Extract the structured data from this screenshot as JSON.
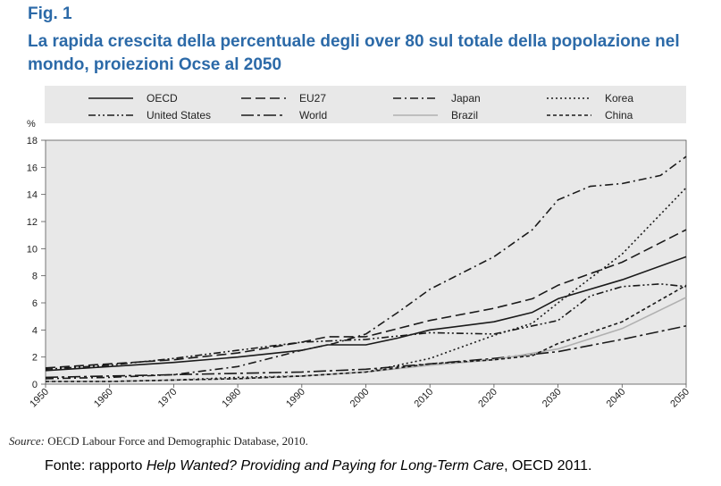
{
  "figure": {
    "label": "Fig. 1",
    "title": "La rapida crescita della percentuale degli over 80 sul totale della popolazione nel mondo, proiezioni Ocse al 2050"
  },
  "source": {
    "prefix": "Source:",
    "text": "OECD Labour Force and Demographic Database, 2010."
  },
  "fonte": {
    "prefix": "Fonte: rapporto ",
    "italic": "Help Wanted? Providing and Paying for Long-Term Care",
    "suffix": ", OECD 2011."
  },
  "colors": {
    "title": "#2c6aa8",
    "plot_background": "#e8e8e8",
    "series_dark": "#1a1a1a",
    "brazil": "#b0b0b0"
  },
  "chart_data": {
    "type": "line",
    "title": "",
    "xlabel": "",
    "ylabel": "%",
    "xlim": [
      1950,
      2050
    ],
    "ylim": [
      0,
      18
    ],
    "x_ticks": [
      "1950",
      "1960",
      "1970",
      "1980",
      "1990",
      "2000",
      "2010",
      "2020",
      "2030",
      "2040",
      "2050"
    ],
    "y_ticks": [
      "0",
      "2",
      "4",
      "6",
      "8",
      "10",
      "12",
      "14",
      "16",
      "18"
    ],
    "grid": false,
    "legend_position": "top",
    "series": [
      {
        "name": "OECD",
        "dash": "solid",
        "color": "#1a1a1a",
        "points": [
          [
            1950,
            1.0
          ],
          [
            1960,
            1.3
          ],
          [
            1970,
            1.6
          ],
          [
            1980,
            2.0
          ],
          [
            1990,
            2.5
          ],
          [
            1994,
            2.9
          ],
          [
            2000,
            2.9
          ],
          [
            2005,
            3.4
          ],
          [
            2010,
            4.0
          ],
          [
            2020,
            4.6
          ],
          [
            2026,
            5.3
          ],
          [
            2030,
            6.3
          ],
          [
            2040,
            7.7
          ],
          [
            2050,
            9.4
          ]
        ]
      },
      {
        "name": "EU27",
        "dash": "long-dash",
        "color": "#1a1a1a",
        "points": [
          [
            1950,
            1.2
          ],
          [
            1960,
            1.5
          ],
          [
            1970,
            1.8
          ],
          [
            1980,
            2.3
          ],
          [
            1990,
            3.1
          ],
          [
            1994,
            3.5
          ],
          [
            2000,
            3.5
          ],
          [
            2010,
            4.7
          ],
          [
            2020,
            5.6
          ],
          [
            2026,
            6.3
          ],
          [
            2030,
            7.3
          ],
          [
            2040,
            9.0
          ],
          [
            2050,
            11.4
          ]
        ]
      },
      {
        "name": "Japan",
        "dash": "dash-dot",
        "color": "#1a1a1a",
        "points": [
          [
            1950,
            0.4
          ],
          [
            1960,
            0.5
          ],
          [
            1970,
            0.7
          ],
          [
            1980,
            1.3
          ],
          [
            1990,
            2.5
          ],
          [
            1995,
            3.0
          ],
          [
            2000,
            3.7
          ],
          [
            2005,
            5.3
          ],
          [
            2010,
            7.0
          ],
          [
            2020,
            9.4
          ],
          [
            2026,
            11.4
          ],
          [
            2030,
            13.6
          ],
          [
            2035,
            14.6
          ],
          [
            2040,
            14.8
          ],
          [
            2046,
            15.4
          ],
          [
            2050,
            16.8
          ]
        ]
      },
      {
        "name": "Korea",
        "dash": "dotted",
        "color": "#1a1a1a",
        "points": [
          [
            1950,
            0.2
          ],
          [
            1960,
            0.2
          ],
          [
            1970,
            0.3
          ],
          [
            1980,
            0.5
          ],
          [
            1990,
            0.6
          ],
          [
            2000,
            0.9
          ],
          [
            2010,
            1.9
          ],
          [
            2020,
            3.6
          ],
          [
            2026,
            4.5
          ],
          [
            2030,
            6.0
          ],
          [
            2040,
            9.6
          ],
          [
            2050,
            14.5
          ]
        ]
      },
      {
        "name": "United States",
        "dash": "dash-dot-dot",
        "color": "#1a1a1a",
        "points": [
          [
            1950,
            1.1
          ],
          [
            1960,
            1.4
          ],
          [
            1970,
            1.9
          ],
          [
            1980,
            2.5
          ],
          [
            1990,
            3.1
          ],
          [
            2000,
            3.3
          ],
          [
            2010,
            3.8
          ],
          [
            2020,
            3.7
          ],
          [
            2030,
            4.7
          ],
          [
            2035,
            6.5
          ],
          [
            2040,
            7.2
          ],
          [
            2046,
            7.4
          ],
          [
            2050,
            7.2
          ]
        ]
      },
      {
        "name": "World",
        "dash": "long-dash-dot",
        "color": "#1a1a1a",
        "points": [
          [
            1950,
            0.5
          ],
          [
            1960,
            0.6
          ],
          [
            1970,
            0.7
          ],
          [
            1980,
            0.8
          ],
          [
            1990,
            0.9
          ],
          [
            2000,
            1.1
          ],
          [
            2010,
            1.5
          ],
          [
            2020,
            1.9
          ],
          [
            2030,
            2.4
          ],
          [
            2040,
            3.3
          ],
          [
            2050,
            4.3
          ]
        ]
      },
      {
        "name": "Brazil",
        "dash": "solid",
        "color": "#b0b0b0",
        "points": [
          [
            1950,
            0.2
          ],
          [
            1960,
            0.2
          ],
          [
            1970,
            0.3
          ],
          [
            1980,
            0.4
          ],
          [
            1990,
            0.6
          ],
          [
            2000,
            0.9
          ],
          [
            2010,
            1.4
          ],
          [
            2020,
            1.8
          ],
          [
            2030,
            2.6
          ],
          [
            2040,
            4.1
          ],
          [
            2050,
            6.4
          ]
        ]
      },
      {
        "name": "China",
        "dash": "short-dash",
        "color": "#1a1a1a",
        "points": [
          [
            1950,
            0.2
          ],
          [
            1960,
            0.2
          ],
          [
            1970,
            0.3
          ],
          [
            1980,
            0.4
          ],
          [
            1990,
            0.6
          ],
          [
            2000,
            0.9
          ],
          [
            2010,
            1.5
          ],
          [
            2020,
            1.8
          ],
          [
            2026,
            2.1
          ],
          [
            2030,
            3.0
          ],
          [
            2040,
            4.6
          ],
          [
            2050,
            7.3
          ]
        ]
      }
    ]
  }
}
